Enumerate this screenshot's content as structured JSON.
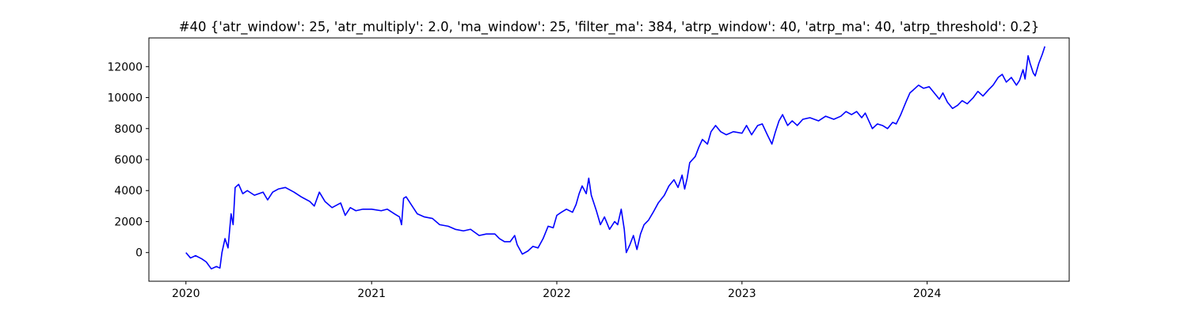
{
  "chart_data": {
    "type": "line",
    "title": "#40 {'atr_window': 25, 'atr_multiply': 2.0, 'ma_window': 25, 'filter_ma': 384, 'atrp_window': 40, 'atrp_ma': 40, 'atrp_threshold': 0.2}",
    "xlabel": "",
    "ylabel": "",
    "x_axis": {
      "type": "date",
      "xlim": [
        "2019-10-20",
        "2024-10-07"
      ],
      "tick_labels": [
        "2020",
        "2021",
        "2022",
        "2023",
        "2024"
      ],
      "tick_values": [
        "2020-01-01",
        "2021-01-01",
        "2022-01-01",
        "2023-01-01",
        "2024-01-01"
      ]
    },
    "y_axis": {
      "ylim": [
        -1850,
        13850
      ],
      "tick_labels": [
        "0",
        "2000",
        "4000",
        "6000",
        "8000",
        "10000",
        "12000"
      ],
      "tick_values": [
        0,
        2000,
        4000,
        6000,
        8000,
        10000,
        12000
      ]
    },
    "grid": false,
    "legend": "none",
    "line_color": "#0000ff",
    "series": [
      {
        "points": [
          [
            "2020-01-01",
            0
          ],
          [
            "2020-01-10",
            -350
          ],
          [
            "2020-01-20",
            -200
          ],
          [
            "2020-02-01",
            -400
          ],
          [
            "2020-02-10",
            -600
          ],
          [
            "2020-02-20",
            -1050
          ],
          [
            "2020-03-01",
            -900
          ],
          [
            "2020-03-08",
            -1000
          ],
          [
            "2020-03-12",
            0
          ],
          [
            "2020-03-18",
            900
          ],
          [
            "2020-03-24",
            300
          ],
          [
            "2020-03-30",
            2500
          ],
          [
            "2020-04-03",
            1800
          ],
          [
            "2020-04-07",
            4200
          ],
          [
            "2020-04-14",
            4400
          ],
          [
            "2020-04-22",
            3800
          ],
          [
            "2020-05-01",
            4000
          ],
          [
            "2020-05-15",
            3700
          ],
          [
            "2020-06-01",
            3900
          ],
          [
            "2020-06-10",
            3400
          ],
          [
            "2020-06-20",
            3900
          ],
          [
            "2020-07-01",
            4100
          ],
          [
            "2020-07-15",
            4200
          ],
          [
            "2020-08-01",
            3900
          ],
          [
            "2020-08-15",
            3600
          ],
          [
            "2020-09-01",
            3300
          ],
          [
            "2020-09-10",
            3000
          ],
          [
            "2020-09-20",
            3900
          ],
          [
            "2020-10-01",
            3300
          ],
          [
            "2020-10-15",
            2900
          ],
          [
            "2020-11-01",
            3200
          ],
          [
            "2020-11-10",
            2400
          ],
          [
            "2020-11-20",
            2900
          ],
          [
            "2020-12-01",
            2700
          ],
          [
            "2020-12-15",
            2800
          ],
          [
            "2021-01-01",
            2800
          ],
          [
            "2021-01-20",
            2700
          ],
          [
            "2021-02-01",
            2800
          ],
          [
            "2021-02-15",
            2500
          ],
          [
            "2021-02-25",
            2300
          ],
          [
            "2021-03-01",
            1800
          ],
          [
            "2021-03-05",
            3500
          ],
          [
            "2021-03-10",
            3600
          ],
          [
            "2021-03-20",
            3100
          ],
          [
            "2021-04-01",
            2500
          ],
          [
            "2021-04-15",
            2300
          ],
          [
            "2021-05-01",
            2200
          ],
          [
            "2021-05-15",
            1800
          ],
          [
            "2021-06-01",
            1700
          ],
          [
            "2021-06-15",
            1500
          ],
          [
            "2021-07-01",
            1400
          ],
          [
            "2021-07-15",
            1500
          ],
          [
            "2021-08-01",
            1100
          ],
          [
            "2021-08-15",
            1200
          ],
          [
            "2021-09-01",
            1200
          ],
          [
            "2021-09-10",
            900
          ],
          [
            "2021-09-20",
            700
          ],
          [
            "2021-10-01",
            700
          ],
          [
            "2021-10-10",
            1100
          ],
          [
            "2021-10-15",
            500
          ],
          [
            "2021-10-25",
            -100
          ],
          [
            "2021-11-05",
            100
          ],
          [
            "2021-11-15",
            400
          ],
          [
            "2021-11-25",
            300
          ],
          [
            "2021-12-05",
            900
          ],
          [
            "2021-12-15",
            1700
          ],
          [
            "2021-12-25",
            1600
          ],
          [
            "2022-01-01",
            2400
          ],
          [
            "2022-01-10",
            2600
          ],
          [
            "2022-01-20",
            2800
          ],
          [
            "2022-02-01",
            2600
          ],
          [
            "2022-02-08",
            3100
          ],
          [
            "2022-02-14",
            3800
          ],
          [
            "2022-02-20",
            4300
          ],
          [
            "2022-02-28",
            3800
          ],
          [
            "2022-03-05",
            4800
          ],
          [
            "2022-03-10",
            3700
          ],
          [
            "2022-03-20",
            2700
          ],
          [
            "2022-03-28",
            1800
          ],
          [
            "2022-04-05",
            2300
          ],
          [
            "2022-04-15",
            1500
          ],
          [
            "2022-04-25",
            2000
          ],
          [
            "2022-05-01",
            1800
          ],
          [
            "2022-05-08",
            2800
          ],
          [
            "2022-05-14",
            1500
          ],
          [
            "2022-05-18",
            0
          ],
          [
            "2022-05-25",
            500
          ],
          [
            "2022-06-01",
            1100
          ],
          [
            "2022-06-08",
            200
          ],
          [
            "2022-06-15",
            1200
          ],
          [
            "2022-06-22",
            1800
          ],
          [
            "2022-07-01",
            2100
          ],
          [
            "2022-07-10",
            2600
          ],
          [
            "2022-07-20",
            3200
          ],
          [
            "2022-08-01",
            3700
          ],
          [
            "2022-08-10",
            4300
          ],
          [
            "2022-08-20",
            4700
          ],
          [
            "2022-08-28",
            4200
          ],
          [
            "2022-09-05",
            5000
          ],
          [
            "2022-09-10",
            4100
          ],
          [
            "2022-09-15",
            4800
          ],
          [
            "2022-09-20",
            5800
          ],
          [
            "2022-10-01",
            6200
          ],
          [
            "2022-10-08",
            6800
          ],
          [
            "2022-10-15",
            7300
          ],
          [
            "2022-10-25",
            7000
          ],
          [
            "2022-11-01",
            7800
          ],
          [
            "2022-11-10",
            8200
          ],
          [
            "2022-11-20",
            7800
          ],
          [
            "2022-12-01",
            7600
          ],
          [
            "2022-12-15",
            7800
          ],
          [
            "2023-01-01",
            7700
          ],
          [
            "2023-01-10",
            8200
          ],
          [
            "2023-01-20",
            7600
          ],
          [
            "2023-02-01",
            8200
          ],
          [
            "2023-02-10",
            8300
          ],
          [
            "2023-02-20",
            7600
          ],
          [
            "2023-03-01",
            7000
          ],
          [
            "2023-03-08",
            7800
          ],
          [
            "2023-03-15",
            8500
          ],
          [
            "2023-03-22",
            8900
          ],
          [
            "2023-04-01",
            8200
          ],
          [
            "2023-04-10",
            8500
          ],
          [
            "2023-04-20",
            8200
          ],
          [
            "2023-05-01",
            8600
          ],
          [
            "2023-05-15",
            8700
          ],
          [
            "2023-06-01",
            8500
          ],
          [
            "2023-06-15",
            8800
          ],
          [
            "2023-07-01",
            8600
          ],
          [
            "2023-07-15",
            8800
          ],
          [
            "2023-07-25",
            9100
          ],
          [
            "2023-08-05",
            8900
          ],
          [
            "2023-08-15",
            9100
          ],
          [
            "2023-08-25",
            8700
          ],
          [
            "2023-09-01",
            9000
          ],
          [
            "2023-09-08",
            8500
          ],
          [
            "2023-09-15",
            8000
          ],
          [
            "2023-09-25",
            8300
          ],
          [
            "2023-10-05",
            8200
          ],
          [
            "2023-10-15",
            8000
          ],
          [
            "2023-10-25",
            8400
          ],
          [
            "2023-11-01",
            8300
          ],
          [
            "2023-11-10",
            8900
          ],
          [
            "2023-11-20",
            9700
          ],
          [
            "2023-11-28",
            10300
          ],
          [
            "2023-12-05",
            10500
          ],
          [
            "2023-12-15",
            10800
          ],
          [
            "2023-12-25",
            10600
          ],
          [
            "2024-01-05",
            10700
          ],
          [
            "2024-01-15",
            10300
          ],
          [
            "2024-01-25",
            9900
          ],
          [
            "2024-02-01",
            10300
          ],
          [
            "2024-02-10",
            9700
          ],
          [
            "2024-02-20",
            9300
          ],
          [
            "2024-03-01",
            9500
          ],
          [
            "2024-03-10",
            9800
          ],
          [
            "2024-03-20",
            9600
          ],
          [
            "2024-04-01",
            10000
          ],
          [
            "2024-04-10",
            10400
          ],
          [
            "2024-04-20",
            10100
          ],
          [
            "2024-05-01",
            10500
          ],
          [
            "2024-05-10",
            10800
          ],
          [
            "2024-05-20",
            11300
          ],
          [
            "2024-05-28",
            11500
          ],
          [
            "2024-06-05",
            11000
          ],
          [
            "2024-06-15",
            11300
          ],
          [
            "2024-06-25",
            10800
          ],
          [
            "2024-07-01",
            11100
          ],
          [
            "2024-07-08",
            11800
          ],
          [
            "2024-07-12",
            11200
          ],
          [
            "2024-07-18",
            12700
          ],
          [
            "2024-07-22",
            12200
          ],
          [
            "2024-07-28",
            11600
          ],
          [
            "2024-08-01",
            11400
          ],
          [
            "2024-08-08",
            12200
          ],
          [
            "2024-08-15",
            12800
          ],
          [
            "2024-08-20",
            13300
          ]
        ]
      }
    ]
  }
}
